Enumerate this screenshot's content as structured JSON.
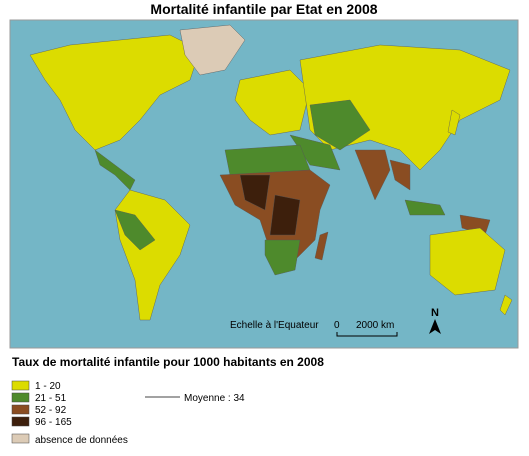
{
  "title": "Mortalité infantile par Etat en 2008",
  "map": {
    "ocean_color": "#74b6c6",
    "scale": {
      "label": "Echelle à l'Equateur",
      "start": "0",
      "end": "2000 km"
    },
    "north": "N"
  },
  "legend": {
    "title": "Taux de mortalité infantile pour 1000 habitants en 2008",
    "classes": [
      {
        "label": "1 - 20",
        "color": "#dcdc00"
      },
      {
        "label": "21 - 51",
        "color": "#4e8a2c"
      },
      {
        "label": "52 - 92",
        "color": "#8a4d22"
      },
      {
        "label": "96 - 165",
        "color": "#3d1f0c"
      }
    ],
    "mean": "Moyenne : 34",
    "no_data": {
      "label": "absence de données",
      "color": "#dccbb6"
    }
  }
}
